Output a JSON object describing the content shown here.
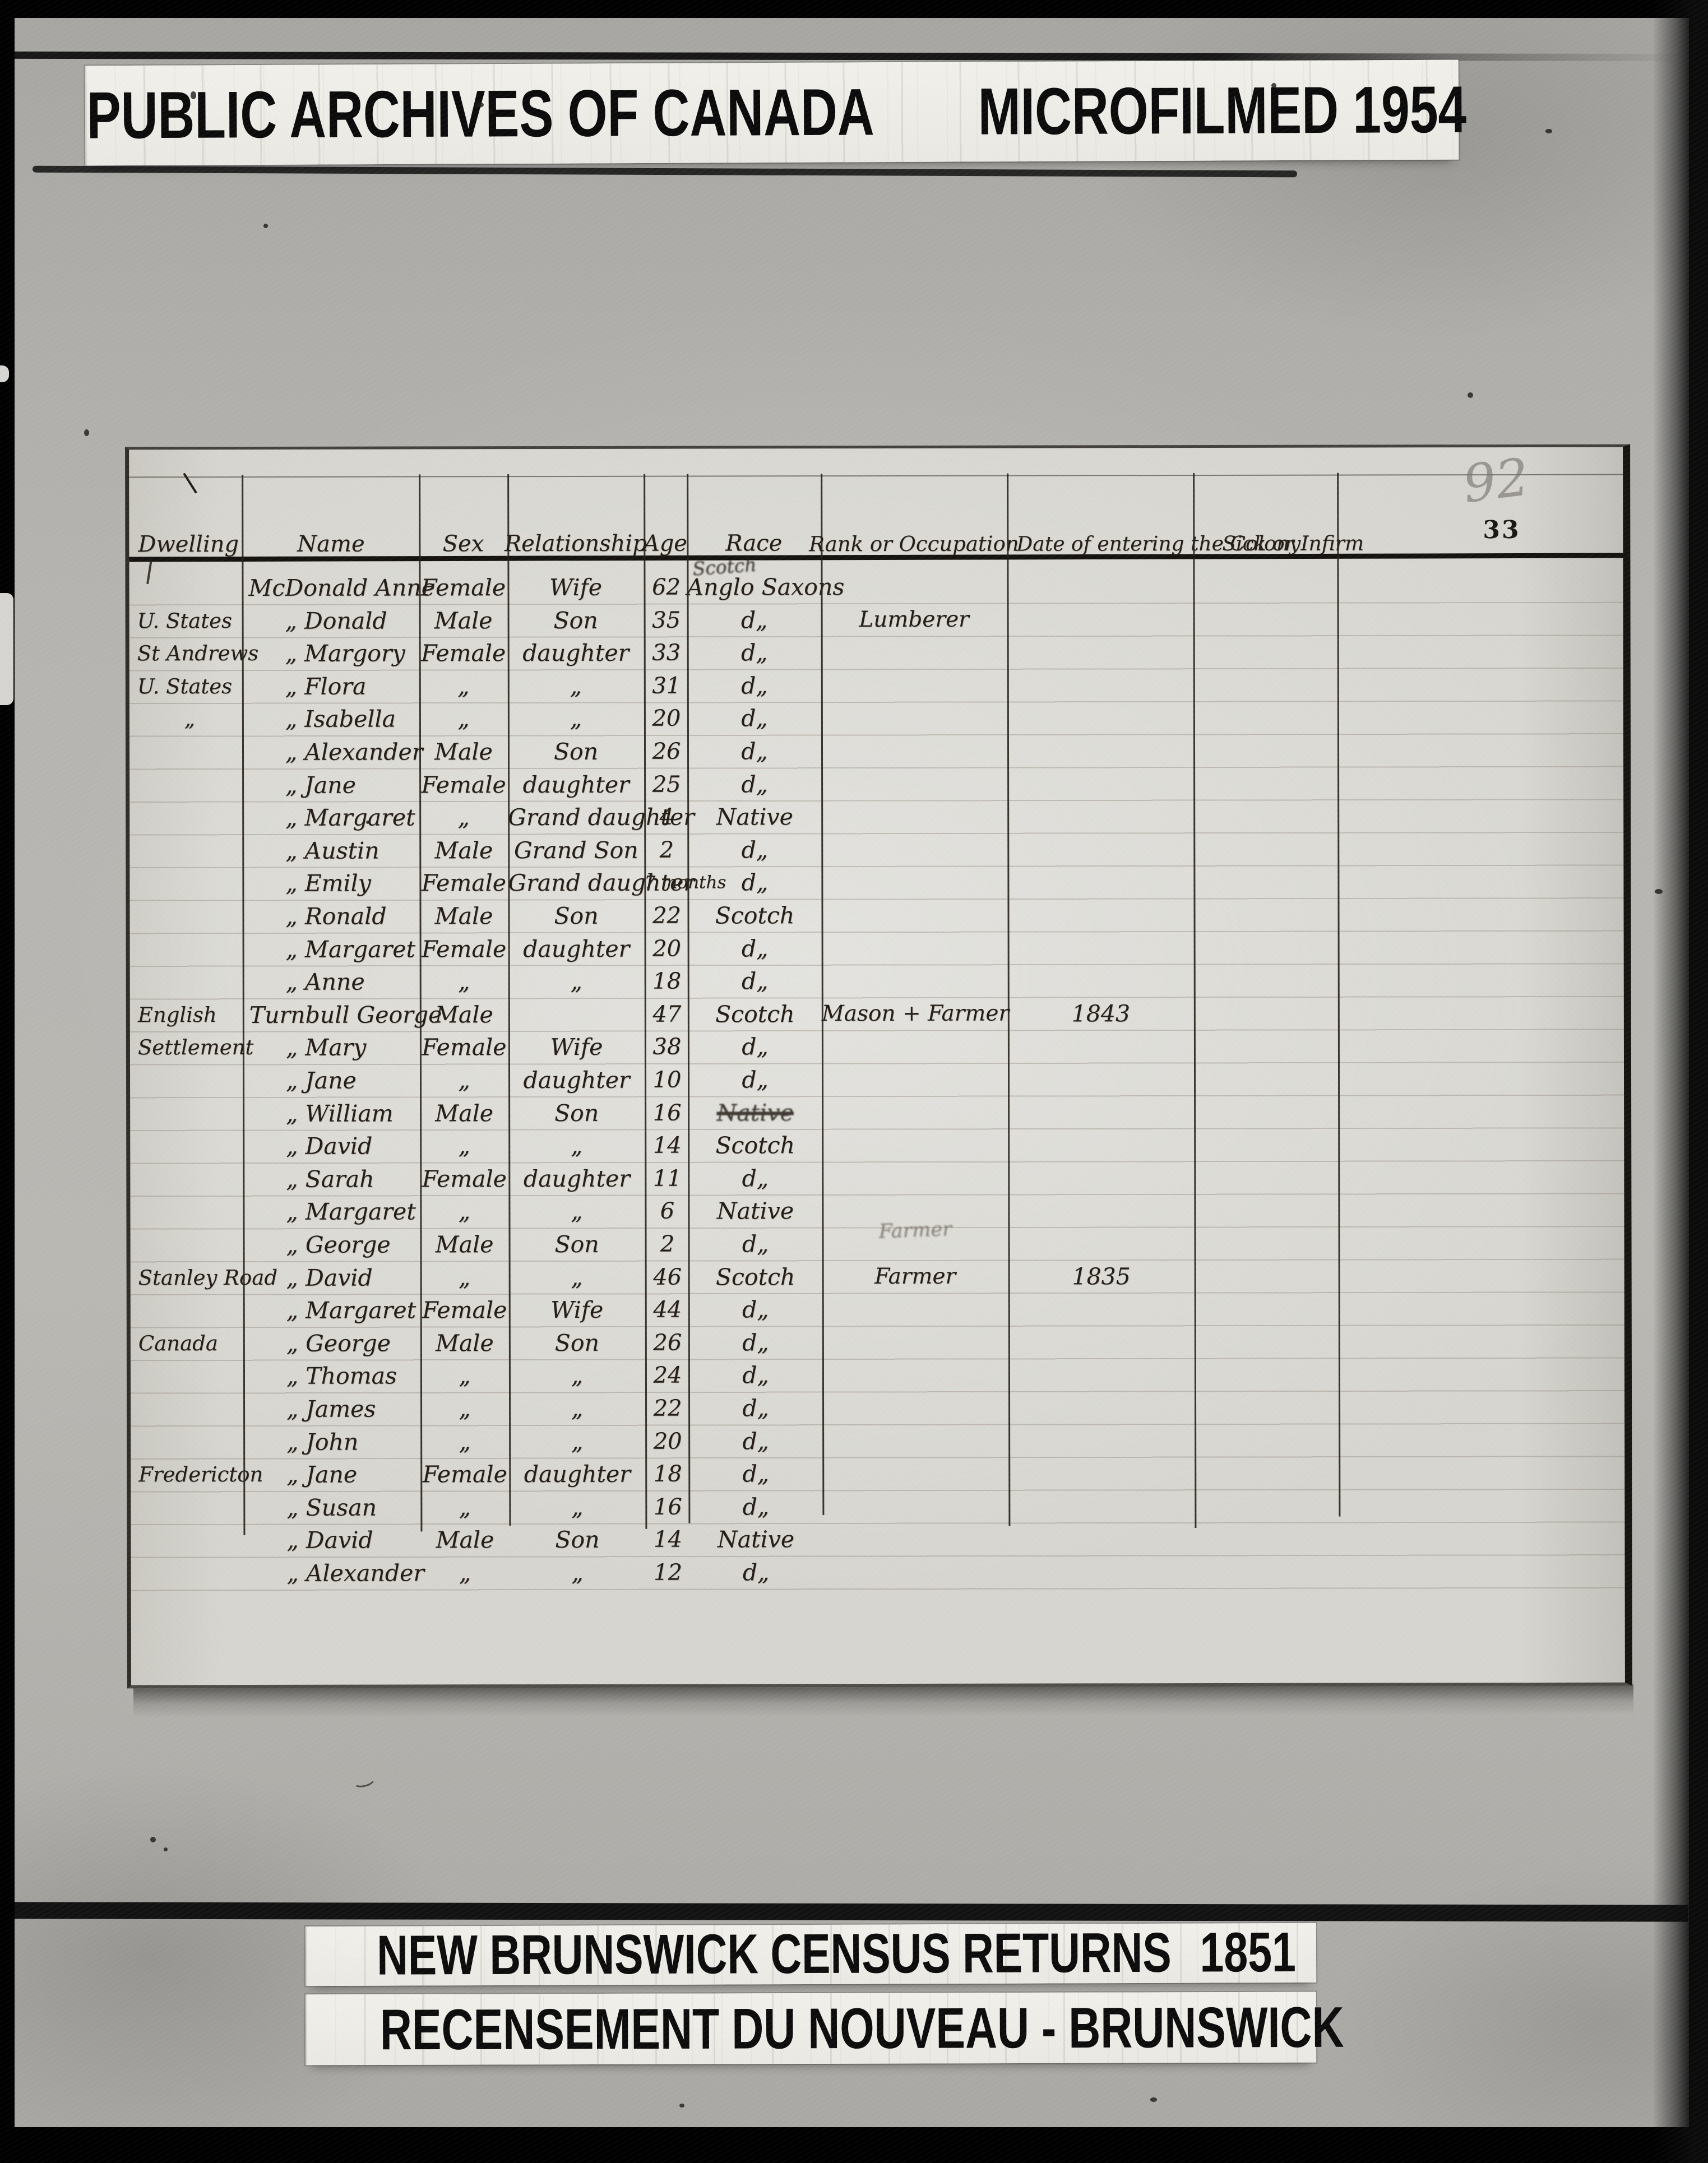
{
  "colors": {
    "film_black": "#0b0b0b",
    "film_gray": "#b3b2ae",
    "paper": "#d7d6d0",
    "banner_paper": "#f0efe9",
    "ink": "#241d16",
    "pencil": "#76716a"
  },
  "top_banner": {
    "left": "PUBLIC ARCHIVES OF CANADA",
    "right": "MICROFILMED 1954"
  },
  "census_table": {
    "pencil_number": "92",
    "page_number": "33",
    "columns": [
      "Dwelling",
      "Name",
      "Sex",
      "Relationship",
      "Age",
      "Race",
      "Rank or Occupation",
      "Date of entering the Colony",
      "Sick or Infirm"
    ],
    "rows": [
      {
        "dwelling": "",
        "name": "McDonald Anne",
        "first": true,
        "sex": "Female",
        "relationship": "Wife",
        "age": "62",
        "race": "Anglo Saxons",
        "race_above": "Scotch",
        "occupation": "",
        "date": ""
      },
      {
        "dwelling": "U. States",
        "name": "„  Donald",
        "sex": "Male",
        "relationship": "Son",
        "age": "35",
        "race": "d„",
        "occupation": "Lumberer",
        "date": ""
      },
      {
        "dwelling": "St Andrews",
        "name": "„  Margory",
        "sex": "Female",
        "relationship": "daughter",
        "age": "33",
        "race": "d„",
        "occupation": "",
        "date": ""
      },
      {
        "dwelling": "U. States",
        "name": "„  Flora",
        "sex": "„",
        "relationship": "„",
        "age": "31",
        "race": "d„",
        "occupation": "",
        "date": ""
      },
      {
        "dwelling": "„",
        "name": "„  Isabella",
        "sex": "„",
        "relationship": "„",
        "age": "20",
        "race": "d„",
        "occupation": "",
        "date": ""
      },
      {
        "dwelling": "",
        "name": "„  Alexander",
        "sex": "Male",
        "relationship": "Son",
        "age": "26",
        "race": "d„",
        "occupation": "",
        "date": ""
      },
      {
        "dwelling": "",
        "name": "„  Jane",
        "sex": "Female",
        "relationship": "daughter",
        "age": "25",
        "race": "d„",
        "occupation": "",
        "date": ""
      },
      {
        "dwelling": "",
        "name": "„  Margaret",
        "sex": "„",
        "relationship": "Grand daughter",
        "age": "4",
        "race": "Native",
        "occupation": "",
        "date": ""
      },
      {
        "dwelling": "",
        "name": "„  Austin",
        "sex": "Male",
        "relationship": "Grand Son",
        "age": "2",
        "race": "d„",
        "occupation": "",
        "date": ""
      },
      {
        "dwelling": "",
        "name": "„  Emily",
        "sex": "Female",
        "relationship": "Grand daughter",
        "age": "7 months",
        "race": "d„",
        "occupation": "",
        "date": ""
      },
      {
        "dwelling": "",
        "name": "„  Ronald",
        "sex": "Male",
        "relationship": "Son",
        "age": "22",
        "race": "Scotch",
        "occupation": "",
        "date": ""
      },
      {
        "dwelling": "",
        "name": "„  Margaret",
        "sex": "Female",
        "relationship": "daughter",
        "age": "20",
        "race": "d„",
        "occupation": "",
        "date": ""
      },
      {
        "dwelling": "",
        "name": "„  Anne",
        "sex": "„",
        "relationship": "„",
        "age": "18",
        "race": "d„",
        "occupation": "",
        "date": ""
      },
      {
        "dwelling": "English",
        "name": "Turnbull George",
        "first": true,
        "sex": "Male",
        "relationship": "",
        "age": "47",
        "race": "Scotch",
        "occupation": "Mason + Farmer",
        "date": "1843"
      },
      {
        "dwelling": "Settlement",
        "name": "„  Mary",
        "sex": "Female",
        "relationship": "Wife",
        "age": "38",
        "race": "d„",
        "occupation": "",
        "date": ""
      },
      {
        "dwelling": "",
        "name": "„  Jane",
        "sex": "„",
        "relationship": "daughter",
        "age": "10",
        "race": "d„",
        "occupation": "",
        "date": ""
      },
      {
        "dwelling": "",
        "name": "„  William",
        "sex": "Male",
        "relationship": "Son",
        "age": "16",
        "race": "Native",
        "race_note": "struck",
        "occupation": "",
        "date": ""
      },
      {
        "dwelling": "",
        "name": "„  David",
        "sex": "„",
        "relationship": "„",
        "age": "14",
        "race": "Scotch",
        "occupation": "",
        "date": ""
      },
      {
        "dwelling": "",
        "name": "„  Sarah",
        "sex": "Female",
        "relationship": "daughter",
        "age": "11",
        "race": "d„",
        "occupation": "",
        "date": ""
      },
      {
        "dwelling": "",
        "name": "„  Margaret",
        "sex": "„",
        "relationship": "„",
        "age": "6",
        "race": "Native",
        "occupation": "",
        "date": ""
      },
      {
        "dwelling": "",
        "name": "„  George",
        "sex": "Male",
        "relationship": "Son",
        "age": "2",
        "race": "d„",
        "occupation": "Farmer",
        "occupation_note": "faint-pencil",
        "date": ""
      },
      {
        "dwelling": "Stanley Road",
        "name": "„  David",
        "sex": "„",
        "relationship": "„",
        "age": "46",
        "race": "Scotch",
        "occupation": "Farmer",
        "date": "1835"
      },
      {
        "dwelling": "",
        "name": "„  Margaret",
        "sex": "Female",
        "relationship": "Wife",
        "age": "44",
        "race": "d„",
        "occupation": "",
        "date": ""
      },
      {
        "dwelling": "Canada",
        "name": "„  George",
        "sex": "Male",
        "relationship": "Son",
        "age": "26",
        "race": "d„",
        "occupation": "",
        "date": ""
      },
      {
        "dwelling": "",
        "name": "„  Thomas",
        "sex": "„",
        "relationship": "„",
        "age": "24",
        "race": "d„",
        "occupation": "",
        "date": ""
      },
      {
        "dwelling": "",
        "name": "„  James",
        "sex": "„",
        "relationship": "„",
        "age": "22",
        "race": "d„",
        "occupation": "",
        "date": ""
      },
      {
        "dwelling": "",
        "name": "„  John",
        "sex": "„",
        "relationship": "„",
        "age": "20",
        "race": "d„",
        "occupation": "",
        "date": ""
      },
      {
        "dwelling": "Fredericton",
        "name": "„  Jane",
        "sex": "Female",
        "relationship": "daughter",
        "age": "18",
        "race": "d„",
        "occupation": "",
        "date": ""
      },
      {
        "dwelling": "",
        "name": "„  Susan",
        "sex": "„",
        "relationship": "„",
        "age": "16",
        "race": "d„",
        "occupation": "",
        "date": ""
      },
      {
        "dwelling": "",
        "name": "„  David",
        "sex": "Male",
        "relationship": "Son",
        "age": "14",
        "race": "Native",
        "occupation": "",
        "date": ""
      },
      {
        "dwelling": "",
        "name": "„  Alexander",
        "sex": "„",
        "relationship": "„",
        "age": "12",
        "race": "d„",
        "occupation": "",
        "date": ""
      }
    ]
  },
  "bottom_banner_1": {
    "text": "NEW BRUNSWICK CENSUS RETURNS",
    "year": "1851"
  },
  "bottom_banner_2": {
    "text": "RECENSEMENT DU NOUVEAU - BRUNSWICK"
  }
}
